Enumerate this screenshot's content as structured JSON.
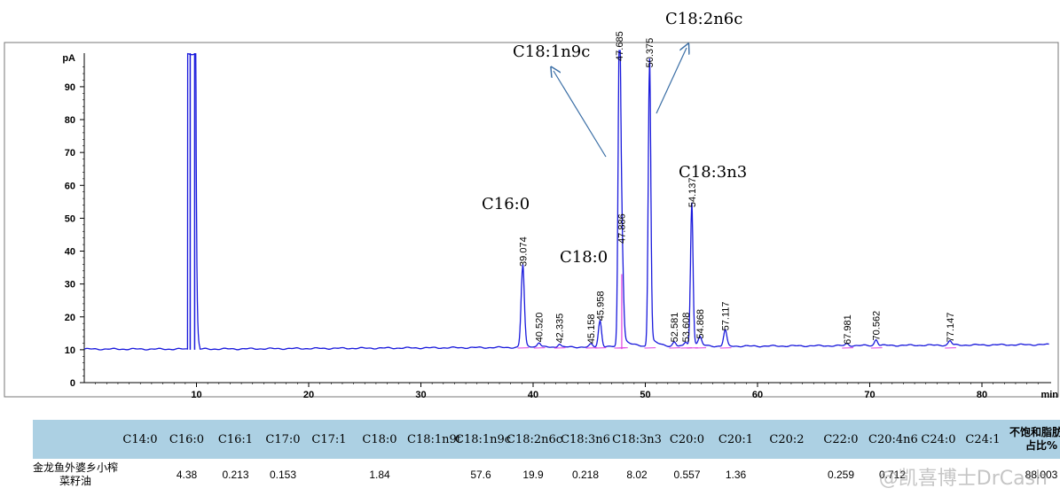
{
  "chart_data": {
    "type": "line",
    "ylabel": "pA",
    "xlabel": "min",
    "xlim": [
      0,
      82
    ],
    "ylim": [
      0,
      100
    ],
    "xticks": [
      "10",
      "20",
      "30",
      "40",
      "50",
      "60",
      "70",
      "80"
    ],
    "yticks": [
      "0",
      "10",
      "20",
      "30",
      "40",
      "50",
      "60",
      "70",
      "80",
      "90"
    ],
    "baseline": 10.2,
    "solvent_peak": {
      "x": 9.6,
      "y": 100
    },
    "peaks": [
      {
        "x": 39.074,
        "y": 34.5,
        "label": "39.074"
      },
      {
        "x": 40.52,
        "y": 11.5,
        "label": "40.520"
      },
      {
        "x": 42.335,
        "y": 11.2,
        "label": "42.335"
      },
      {
        "x": 45.158,
        "y": 11.0,
        "label": "45.158"
      },
      {
        "x": 45.958,
        "y": 18.0,
        "label": "45.958"
      },
      {
        "x": 47.685,
        "y": 97.0,
        "label": "47.685"
      },
      {
        "x": 47.886,
        "y": 41.5,
        "label": "47.886"
      },
      {
        "x": 50.375,
        "y": 95.0,
        "label": "50.375"
      },
      {
        "x": 52.581,
        "y": 11.5,
        "label": "52.581"
      },
      {
        "x": 53.608,
        "y": 11.5,
        "label": "53.608"
      },
      {
        "x": 54.137,
        "y": 52.5,
        "label": "54.137"
      },
      {
        "x": 54.868,
        "y": 12.5,
        "label": "54.868"
      },
      {
        "x": 57.117,
        "y": 15.0,
        "label": "57.117"
      },
      {
        "x": 67.981,
        "y": 10.8,
        "label": "67.981"
      },
      {
        "x": 70.562,
        "y": 12.0,
        "label": "70.562"
      },
      {
        "x": 77.147,
        "y": 11.5,
        "label": "77.147"
      }
    ],
    "annotations": [
      {
        "text": "C16:0"
      },
      {
        "text": "C18:0"
      },
      {
        "text": "C18:1n9c"
      },
      {
        "text": "C18:2n6c"
      },
      {
        "text": "C18:3n3"
      }
    ],
    "colors": {
      "trace": "#1a1adc",
      "integration": "#e040e0",
      "arrow": "#3a6ea5",
      "axis": "#000000"
    }
  },
  "table": {
    "headers": [
      "",
      "C14:0",
      "C16:0",
      "C16:1",
      "C17:0",
      "C17:1",
      "C18:0",
      "C18:1n9t",
      "C18:1n9c",
      "C18:2n6c",
      "C18:3n6",
      "C18:3n3",
      "C20:0",
      "C20:1",
      "C20:2",
      "C22:0",
      "C20:4n6",
      "C24:0",
      "C24:1",
      "不饱和脂肪酸占比%"
    ],
    "row": [
      "金龙鱼外婆乡小榨菜籽油",
      "",
      "4.38",
      "0.213",
      "0.153",
      "",
      "1.84",
      "",
      "57.6",
      "19.9",
      "0.218",
      "8.02",
      "0.557",
      "1.36",
      "",
      "0.259",
      "0.712",
      "",
      "",
      "88.003"
    ],
    "header_color": "#acd0e3"
  },
  "watermark": "@凯喜博士DrCash"
}
